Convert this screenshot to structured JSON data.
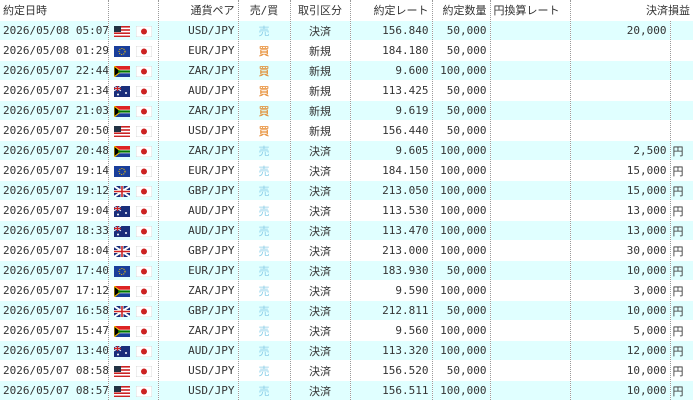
{
  "table": {
    "columns": {
      "datetime": "約定日時",
      "pair": "通貨ペア",
      "side": "売/買",
      "kind": "取引区分",
      "rate": "約定レート",
      "quantity": "約定数量",
      "jpy_rate": "円換算レート",
      "pnl": "決済損益"
    },
    "rows": [
      {
        "datetime": "2026/05/08 05:07",
        "pair": "USD/JPY",
        "side": "売",
        "kind": "決済",
        "rate": "156.840",
        "quantity": "50,000",
        "pnl": "20,000"
      },
      {
        "datetime": "2026/05/08 01:29",
        "pair": "EUR/JPY",
        "side": "買",
        "kind": "新規",
        "rate": "184.180",
        "quantity": "50,000"
      },
      {
        "datetime": "2026/05/07 22:44",
        "pair": "ZAR/JPY",
        "side": "買",
        "kind": "新規",
        "rate": "9.600",
        "quantity": "100,000"
      },
      {
        "datetime": "2026/05/07 21:34",
        "pair": "AUD/JPY",
        "side": "買",
        "kind": "新規",
        "rate": "113.425",
        "quantity": "50,000"
      },
      {
        "datetime": "2026/05/07 21:03",
        "pair": "ZAR/JPY",
        "side": "買",
        "kind": "新規",
        "rate": "9.619",
        "quantity": "50,000"
      },
      {
        "datetime": "2026/05/07 20:50",
        "pair": "USD/JPY",
        "side": "買",
        "kind": "新規",
        "rate": "156.440",
        "quantity": "50,000"
      },
      {
        "datetime": "2026/05/07 20:48",
        "pair": "ZAR/JPY",
        "side": "売",
        "kind": "決済",
        "rate": "9.605",
        "quantity": "100,000",
        "pnl": "2,500",
        "unit": "円"
      },
      {
        "datetime": "2026/05/07 19:14",
        "pair": "EUR/JPY",
        "side": "売",
        "kind": "決済",
        "rate": "184.150",
        "quantity": "100,000",
        "pnl": "15,000",
        "unit": "円"
      },
      {
        "datetime": "2026/05/07 19:12",
        "pair": "GBP/JPY",
        "side": "売",
        "kind": "決済",
        "rate": "213.050",
        "quantity": "100,000",
        "pnl": "15,000",
        "unit": "円"
      },
      {
        "datetime": "2026/05/07 19:04",
        "pair": "AUD/JPY",
        "side": "売",
        "kind": "決済",
        "rate": "113.530",
        "quantity": "100,000",
        "pnl": "13,000",
        "unit": "円"
      },
      {
        "datetime": "2026/05/07 18:33",
        "pair": "AUD/JPY",
        "side": "売",
        "kind": "決済",
        "rate": "113.470",
        "quantity": "100,000",
        "pnl": "13,000",
        "unit": "円"
      },
      {
        "datetime": "2026/05/07 18:04",
        "pair": "GBP/JPY",
        "side": "売",
        "kind": "決済",
        "rate": "213.000",
        "quantity": "100,000",
        "pnl": "30,000",
        "unit": "円"
      },
      {
        "datetime": "2026/05/07 17:40",
        "pair": "EUR/JPY",
        "side": "売",
        "kind": "決済",
        "rate": "183.930",
        "quantity": "50,000",
        "pnl": "10,000",
        "unit": "円"
      },
      {
        "datetime": "2026/05/07 17:12",
        "pair": "ZAR/JPY",
        "side": "売",
        "kind": "決済",
        "rate": "9.590",
        "quantity": "100,000",
        "pnl": "3,000",
        "unit": "円"
      },
      {
        "datetime": "2026/05/07 16:58",
        "pair": "GBP/JPY",
        "side": "売",
        "kind": "決済",
        "rate": "212.811",
        "quantity": "50,000",
        "pnl": "10,000",
        "unit": "円"
      },
      {
        "datetime": "2026/05/07 15:47",
        "pair": "ZAR/JPY",
        "side": "売",
        "kind": "決済",
        "rate": "9.560",
        "quantity": "100,000",
        "pnl": "5,000",
        "unit": "円"
      },
      {
        "datetime": "2026/05/07 13:40",
        "pair": "AUD/JPY",
        "side": "売",
        "kind": "決済",
        "rate": "113.320",
        "quantity": "100,000",
        "pnl": "12,000",
        "unit": "円"
      },
      {
        "datetime": "2026/05/07 08:58",
        "pair": "USD/JPY",
        "side": "売",
        "kind": "決済",
        "rate": "156.520",
        "quantity": "50,000",
        "pnl": "10,000",
        "unit": "円"
      },
      {
        "datetime": "2026/05/07 08:57",
        "pair": "USD/JPY",
        "side": "売",
        "kind": "決済",
        "rate": "156.511",
        "quantity": "100,000",
        "pnl": "10,000",
        "unit": "円"
      }
    ]
  }
}
